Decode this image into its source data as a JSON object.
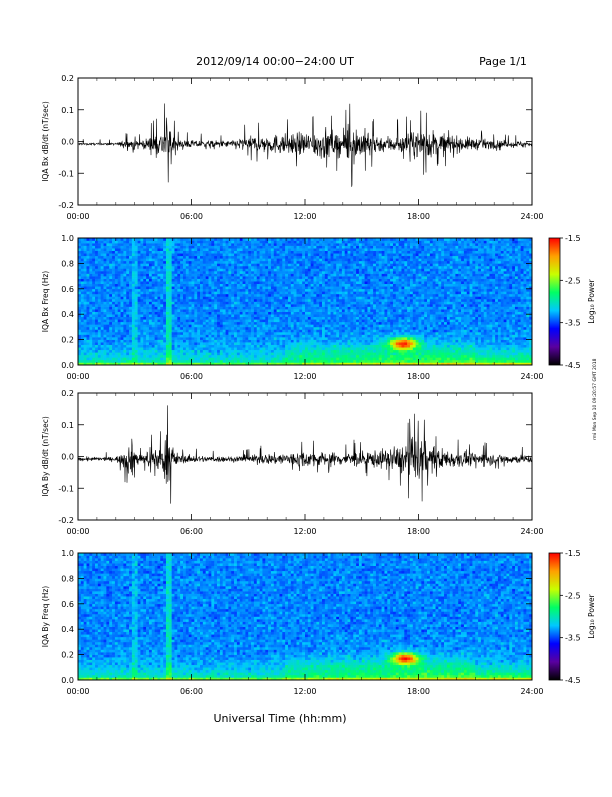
{
  "header": {
    "date_range": "2012/09/14  00:00−24:00 UT",
    "page": "Page 1/1"
  },
  "footer": {
    "xlabel": "Universal Time (hh:mm)"
  },
  "side_note": "rmi Mon Sep 10 09:20:57 GMT 2018",
  "colors": {
    "trace": "#000000",
    "colormap": [
      "#000000",
      "#5a00a0",
      "#0000ff",
      "#00c8ff",
      "#00ff64",
      "#c8ff00",
      "#ffa000",
      "#ff0000"
    ]
  },
  "chart_data": [
    {
      "type": "line",
      "title": "",
      "ylabel": "IQA Bx dB/dt (nT/sec)",
      "xlabel": "",
      "xlim": [
        "00:00",
        "24:00"
      ],
      "xticks": [
        "00:00",
        "06:00",
        "12:00",
        "18:00",
        "24:00"
      ],
      "ylim": [
        -0.2,
        0.2
      ],
      "yticks": [
        "-0.2",
        "-0.1",
        "0.0",
        "0.1",
        "0.2"
      ],
      "series": [
        {
          "x_hours": [
            0,
            2,
            3.0,
            3.2,
            4.4,
            4.7,
            4.9,
            5.3,
            8,
            8.6,
            9.2,
            10.0,
            11.5,
            12.0,
            13.0,
            14.0,
            14.3,
            16.0,
            17.0,
            18.0,
            18.3,
            20.0,
            22.0,
            24
          ],
          "envelope": [
            0.008,
            0.008,
            0.05,
            0.02,
            0.09,
            0.2,
            0.13,
            0.03,
            0.025,
            0.05,
            0.06,
            0.07,
            0.08,
            0.09,
            0.12,
            0.08,
            0.16,
            0.06,
            0.07,
            0.1,
            0.12,
            0.06,
            0.03,
            0.02
          ]
        }
      ]
    },
    {
      "type": "heatmap",
      "title": "",
      "ylabel": "IQA Bx Freq (Hz)",
      "xlabel": "",
      "xlim": [
        "00:00",
        "24:00"
      ],
      "xticks": [
        "00:00",
        "06:00",
        "12:00",
        "18:00",
        "24:00"
      ],
      "ylim": [
        0.0,
        1.0
      ],
      "yticks": [
        "0.0",
        "0.2",
        "0.4",
        "0.6",
        "0.8",
        "1.0"
      ],
      "colorbar": {
        "label": "Log₁₀ Power",
        "ticks": [
          "-1.5",
          "-2.5",
          "-3.5",
          "-4.5"
        ],
        "range": [
          -4.5,
          -1.5
        ]
      },
      "features": [
        {
          "x_hours": 4.8,
          "freq_hz": [
            0.0,
            1.0
          ],
          "kind": "vertical band"
        },
        {
          "x_hours": 3.0,
          "freq_hz": [
            0.0,
            1.0
          ],
          "kind": "vertical band"
        },
        {
          "x_hours": 17.2,
          "freq_hz": [
            0.15,
            0.2
          ],
          "kind": "peak",
          "log_power": -1.5
        }
      ]
    },
    {
      "type": "line",
      "title": "",
      "ylabel": "IQA By dB/dt (nT/sec)",
      "xlabel": "",
      "xlim": [
        "00:00",
        "24:00"
      ],
      "xticks": [
        "00:00",
        "06:00",
        "12:00",
        "18:00",
        "24:00"
      ],
      "ylim": [
        -0.2,
        0.2
      ],
      "yticks": [
        "-0.2",
        "-0.1",
        "0.0",
        "0.1",
        "0.2"
      ],
      "series": [
        {
          "x_hours": [
            0,
            2,
            3.0,
            3.2,
            4.4,
            4.7,
            4.9,
            5.3,
            8,
            9,
            10.0,
            12.0,
            14.0,
            16.0,
            17.0,
            17.8,
            18.0,
            18.5,
            20.0,
            22.0,
            24
          ],
          "envelope": [
            0.015,
            0.015,
            0.16,
            0.03,
            0.1,
            0.2,
            0.15,
            0.03,
            0.02,
            0.03,
            0.04,
            0.06,
            0.05,
            0.07,
            0.1,
            0.19,
            0.2,
            0.1,
            0.06,
            0.04,
            0.03
          ]
        }
      ]
    },
    {
      "type": "heatmap",
      "title": "",
      "ylabel": "IQA By Freq (Hz)",
      "xlabel": "Universal Time (hh:mm)",
      "xlim": [
        "00:00",
        "24:00"
      ],
      "xticks": [
        "00:00",
        "06:00",
        "12:00",
        "18:00",
        "24:00"
      ],
      "ylim": [
        0.0,
        1.0
      ],
      "yticks": [
        "0.0",
        "0.2",
        "0.4",
        "0.6",
        "0.8",
        "1.0"
      ],
      "colorbar": {
        "label": "Log₁₀ Power",
        "ticks": [
          "-1.5",
          "-2.5",
          "-3.5",
          "-4.5"
        ],
        "range": [
          -4.5,
          -1.5
        ]
      },
      "features": [
        {
          "x_hours": 4.8,
          "freq_hz": [
            0.0,
            1.0
          ],
          "kind": "vertical band"
        },
        {
          "x_hours": 3.0,
          "freq_hz": [
            0.0,
            1.0
          ],
          "kind": "vertical band"
        },
        {
          "x_hours": 17.3,
          "freq_hz": [
            0.15,
            0.2
          ],
          "kind": "peak",
          "log_power": -1.5
        }
      ]
    }
  ]
}
